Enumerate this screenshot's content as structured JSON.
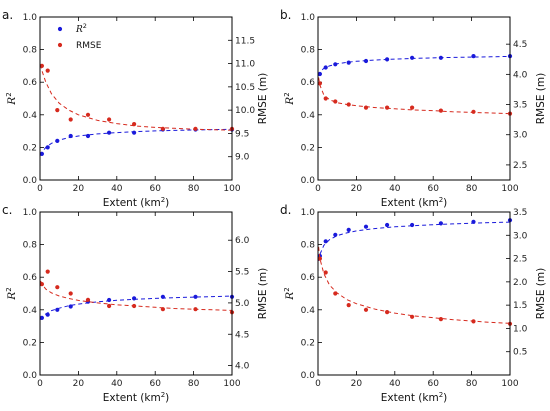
{
  "colors": {
    "r2": "#1a1adb",
    "rmse": "#d62a1e"
  },
  "legend": {
    "r2_label": "R",
    "r2_sup": "2",
    "rmse_label": "RMSE"
  },
  "chart_data": [
    {
      "panel": "a.",
      "type": "scatter",
      "xlabel": "Extent (km",
      "xlabel_sup": "2",
      "xlabel_end": ")",
      "ylabel_left": "R",
      "ylabel_left_sup": "2",
      "ylabel_right": "RMSE (m)",
      "xlim": [
        0,
        100
      ],
      "xticks": [
        0,
        20,
        40,
        60,
        80,
        100
      ],
      "ylim_left": [
        0,
        1.0
      ],
      "yticks_left": [
        0.0,
        0.2,
        0.4,
        0.6,
        0.8,
        1.0
      ],
      "ylim_right": [
        8.5,
        12.0
      ],
      "yticks_right": [
        9.0,
        9.5,
        10.0,
        10.5,
        11.0,
        11.5
      ],
      "right_decimals": 1,
      "has_legend": true,
      "series": [
        {
          "name": "R2",
          "axis": "left",
          "x": [
            1,
            4,
            9,
            16,
            25,
            36,
            49,
            64,
            81,
            100
          ],
          "y": [
            0.16,
            0.2,
            0.24,
            0.27,
            0.27,
            0.29,
            0.29,
            0.31,
            0.31,
            0.31
          ],
          "fit": [
            [
              0.3,
              0.15
            ],
            [
              1,
              0.17
            ],
            [
              3,
              0.2
            ],
            [
              6,
              0.225
            ],
            [
              10,
              0.245
            ],
            [
              15,
              0.26
            ],
            [
              20,
              0.27
            ],
            [
              30,
              0.283
            ],
            [
              40,
              0.291
            ],
            [
              50,
              0.297
            ],
            [
              60,
              0.301
            ],
            [
              70,
              0.304
            ],
            [
              80,
              0.307
            ],
            [
              90,
              0.309
            ],
            [
              100,
              0.311
            ]
          ]
        },
        {
          "name": "RMSE",
          "axis": "right",
          "x": [
            1,
            4,
            9,
            16,
            25,
            36,
            49,
            64,
            81,
            100
          ],
          "y": [
            10.95,
            10.85,
            10.0,
            9.8,
            9.9,
            9.8,
            9.7,
            9.6,
            9.6,
            9.6
          ],
          "fit": [
            [
              0.3,
              10.98
            ],
            [
              1,
              10.85
            ],
            [
              3,
              10.6
            ],
            [
              6,
              10.35
            ],
            [
              10,
              10.15
            ],
            [
              15,
              10.0
            ],
            [
              20,
              9.9
            ],
            [
              30,
              9.78
            ],
            [
              40,
              9.71
            ],
            [
              50,
              9.66
            ],
            [
              60,
              9.63
            ],
            [
              70,
              9.61
            ],
            [
              80,
              9.59
            ],
            [
              90,
              9.58
            ],
            [
              100,
              9.57
            ]
          ]
        }
      ]
    },
    {
      "panel": "b.",
      "type": "scatter",
      "xlabel": "Extent (km",
      "xlabel_sup": "2",
      "xlabel_end": ")",
      "ylabel_left": "R",
      "ylabel_left_sup": "2",
      "ylabel_right": "RMSE (m)",
      "xlim": [
        0,
        100
      ],
      "xticks": [
        0,
        20,
        40,
        60,
        80,
        100
      ],
      "ylim_left": [
        0,
        1.0
      ],
      "yticks_left": [
        0.0,
        0.2,
        0.4,
        0.6,
        0.8,
        1.0
      ],
      "ylim_right": [
        2.25,
        4.95
      ],
      "yticks_right": [
        2.5,
        3.0,
        3.5,
        4.0,
        4.5
      ],
      "right_decimals": 1,
      "has_legend": false,
      "series": [
        {
          "name": "R2",
          "axis": "left",
          "x": [
            1,
            4,
            9,
            16,
            25,
            36,
            49,
            64,
            81,
            100
          ],
          "y": [
            0.65,
            0.69,
            0.71,
            0.72,
            0.73,
            0.74,
            0.75,
            0.75,
            0.76,
            0.76
          ],
          "fit": [
            [
              0.3,
              0.64
            ],
            [
              1,
              0.66
            ],
            [
              3,
              0.685
            ],
            [
              6,
              0.7
            ],
            [
              10,
              0.713
            ],
            [
              15,
              0.722
            ],
            [
              20,
              0.728
            ],
            [
              30,
              0.736
            ],
            [
              40,
              0.742
            ],
            [
              50,
              0.746
            ],
            [
              60,
              0.749
            ],
            [
              70,
              0.752
            ],
            [
              80,
              0.754
            ],
            [
              90,
              0.756
            ],
            [
              100,
              0.758
            ]
          ]
        },
        {
          "name": "RMSE",
          "axis": "right",
          "x": [
            1,
            4,
            9,
            16,
            25,
            36,
            49,
            64,
            81,
            100
          ],
          "y": [
            3.85,
            3.6,
            3.55,
            3.5,
            3.45,
            3.45,
            3.45,
            3.4,
            3.38,
            3.35
          ],
          "fit": [
            [
              0.3,
              3.95
            ],
            [
              1,
              3.82
            ],
            [
              3,
              3.66
            ],
            [
              6,
              3.58
            ],
            [
              10,
              3.53
            ],
            [
              15,
              3.5
            ],
            [
              20,
              3.48
            ],
            [
              30,
              3.45
            ],
            [
              40,
              3.43
            ],
            [
              50,
              3.41
            ],
            [
              60,
              3.4
            ],
            [
              70,
              3.38
            ],
            [
              80,
              3.37
            ],
            [
              90,
              3.36
            ],
            [
              100,
              3.35
            ]
          ]
        }
      ]
    },
    {
      "panel": "c.",
      "type": "scatter",
      "xlabel": "Extent (km",
      "xlabel_sup": "2",
      "xlabel_end": ")",
      "ylabel_left": "R",
      "ylabel_left_sup": "2",
      "ylabel_right": "RMSE (m)",
      "xlim": [
        0,
        100
      ],
      "xticks": [
        0,
        20,
        40,
        60,
        80,
        100
      ],
      "ylim_left": [
        0,
        1.0
      ],
      "yticks_left": [
        0.0,
        0.2,
        0.4,
        0.6,
        0.8,
        1.0
      ],
      "ylim_right": [
        3.85,
        6.45
      ],
      "yticks_right": [
        4.0,
        4.5,
        5.0,
        5.5,
        6.0
      ],
      "right_decimals": 1,
      "has_legend": false,
      "series": [
        {
          "name": "R2",
          "axis": "left",
          "x": [
            1,
            4,
            9,
            16,
            25,
            36,
            49,
            64,
            81,
            100
          ],
          "y": [
            0.35,
            0.37,
            0.4,
            0.42,
            0.45,
            0.46,
            0.47,
            0.48,
            0.48,
            0.48
          ],
          "fit": [
            [
              0.3,
              0.34
            ],
            [
              1,
              0.355
            ],
            [
              3,
              0.375
            ],
            [
              6,
              0.395
            ],
            [
              10,
              0.41
            ],
            [
              15,
              0.425
            ],
            [
              20,
              0.435
            ],
            [
              30,
              0.449
            ],
            [
              40,
              0.458
            ],
            [
              50,
              0.465
            ],
            [
              60,
              0.47
            ],
            [
              70,
              0.474
            ],
            [
              80,
              0.478
            ],
            [
              90,
              0.481
            ],
            [
              100,
              0.484
            ]
          ]
        },
        {
          "name": "RMSE",
          "axis": "right",
          "x": [
            1,
            4,
            9,
            16,
            25,
            36,
            49,
            64,
            81,
            100
          ],
          "y": [
            5.3,
            5.5,
            5.25,
            5.15,
            5.05,
            4.95,
            4.95,
            4.9,
            4.9,
            4.85
          ],
          "fit": [
            [
              0.3,
              5.35
            ],
            [
              1,
              5.3
            ],
            [
              3,
              5.22
            ],
            [
              6,
              5.16
            ],
            [
              10,
              5.11
            ],
            [
              15,
              5.07
            ],
            [
              20,
              5.04
            ],
            [
              30,
              5.0
            ],
            [
              40,
              4.97
            ],
            [
              50,
              4.95
            ],
            [
              60,
              4.93
            ],
            [
              70,
              4.91
            ],
            [
              80,
              4.9
            ],
            [
              90,
              4.89
            ],
            [
              100,
              4.88
            ]
          ]
        }
      ]
    },
    {
      "panel": "d.",
      "type": "scatter",
      "xlabel": "Extent (km",
      "xlabel_sup": "2",
      "xlabel_end": ")",
      "ylabel_left": "R",
      "ylabel_left_sup": "2",
      "ylabel_right": "RMSE (m)",
      "xlim": [
        0,
        100
      ],
      "xticks": [
        0,
        20,
        40,
        60,
        80,
        100
      ],
      "ylim_left": [
        0,
        1.0
      ],
      "yticks_left": [
        0.0,
        0.2,
        0.4,
        0.6,
        0.8,
        1.0
      ],
      "ylim_right": [
        0.0,
        3.5
      ],
      "yticks_right": [
        0.5,
        1.0,
        1.5,
        2.0,
        2.5,
        3.0,
        3.5
      ],
      "right_decimals": 1,
      "has_legend": false,
      "series": [
        {
          "name": "R2",
          "axis": "left",
          "x": [
            1,
            4,
            9,
            16,
            25,
            36,
            49,
            64,
            81,
            100
          ],
          "y": [
            0.73,
            0.82,
            0.86,
            0.89,
            0.91,
            0.92,
            0.92,
            0.93,
            0.94,
            0.95
          ],
          "fit": [
            [
              0.3,
              0.7
            ],
            [
              1,
              0.74
            ],
            [
              3,
              0.795
            ],
            [
              6,
              0.83
            ],
            [
              10,
              0.855
            ],
            [
              15,
              0.872
            ],
            [
              20,
              0.884
            ],
            [
              30,
              0.899
            ],
            [
              40,
              0.909
            ],
            [
              50,
              0.916
            ],
            [
              60,
              0.922
            ],
            [
              70,
              0.927
            ],
            [
              80,
              0.931
            ],
            [
              90,
              0.935
            ],
            [
              100,
              0.938
            ]
          ]
        },
        {
          "name": "RMSE",
          "axis": "right",
          "x": [
            1,
            4,
            9,
            16,
            25,
            36,
            49,
            64,
            81,
            100
          ],
          "y": [
            2.5,
            2.2,
            1.75,
            1.5,
            1.4,
            1.35,
            1.25,
            1.2,
            1.15,
            1.1
          ],
          "fit": [
            [
              0.3,
              2.75
            ],
            [
              1,
              2.5
            ],
            [
              3,
              2.18
            ],
            [
              6,
              1.93
            ],
            [
              10,
              1.76
            ],
            [
              15,
              1.62
            ],
            [
              20,
              1.53
            ],
            [
              30,
              1.41
            ],
            [
              40,
              1.33
            ],
            [
              50,
              1.27
            ],
            [
              60,
              1.23
            ],
            [
              70,
              1.19
            ],
            [
              80,
              1.16
            ],
            [
              90,
              1.13
            ],
            [
              100,
              1.11
            ]
          ]
        }
      ]
    }
  ]
}
